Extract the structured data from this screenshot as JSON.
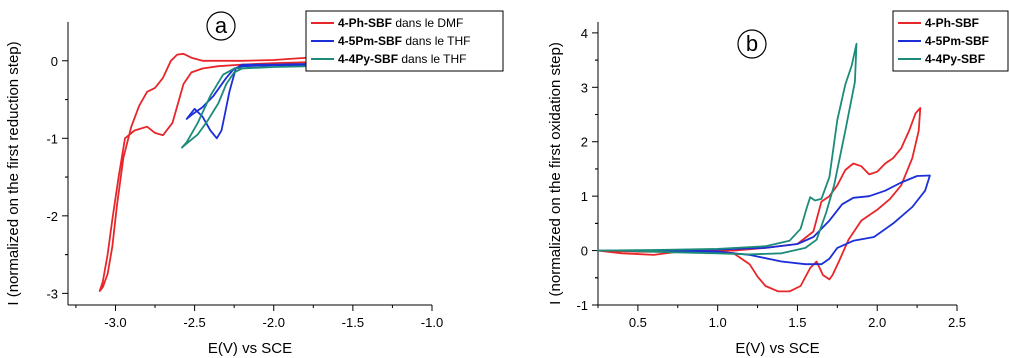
{
  "chart_data": [
    {
      "type": "line",
      "panel_label": "a",
      "xlabel": "E(V) vs SCE",
      "ylabel": "I (normalized on the first reduction step)",
      "xlim": [
        -3.3,
        -1.0
      ],
      "ylim": [
        -3.15,
        0.5
      ],
      "x_ticks": [
        -3.0,
        -2.5,
        -2.0,
        -1.5,
        -1.0
      ],
      "x_tick_labels": [
        "-3.0",
        "-2.5",
        "-2.0",
        "-1.5",
        "-1.0"
      ],
      "y_ticks": [
        0,
        -1,
        -2,
        -3
      ],
      "y_tick_labels": [
        "0",
        "-1",
        "-2",
        "-3"
      ],
      "legend_position": "top-right",
      "series": [
        {
          "name_bold": "4-Ph-SBF",
          "name_rest": " dans le  DMF",
          "color": "#e8262a",
          "points": [
            [
              -1.7,
              0.05
            ],
            [
              -1.85,
              0.03
            ],
            [
              -2.0,
              0.01
            ],
            [
              -2.2,
              0.0
            ],
            [
              -2.35,
              0.0
            ],
            [
              -2.45,
              0.0
            ],
            [
              -2.52,
              0.04
            ],
            [
              -2.57,
              0.09
            ],
            [
              -2.61,
              0.08
            ],
            [
              -2.65,
              0.0
            ],
            [
              -2.7,
              -0.22
            ],
            [
              -2.75,
              -0.35
            ],
            [
              -2.8,
              -0.4
            ],
            [
              -2.85,
              -0.58
            ],
            [
              -2.9,
              -0.85
            ],
            [
              -2.95,
              -1.25
            ],
            [
              -2.99,
              -1.85
            ],
            [
              -3.02,
              -2.4
            ],
            [
              -3.05,
              -2.75
            ],
            [
              -3.08,
              -2.92
            ],
            [
              -3.1,
              -2.97
            ],
            [
              -3.08,
              -2.85
            ],
            [
              -3.05,
              -2.5
            ],
            [
              -3.02,
              -2.05
            ],
            [
              -2.98,
              -1.5
            ],
            [
              -2.94,
              -1.0
            ],
            [
              -2.88,
              -0.9
            ],
            [
              -2.8,
              -0.85
            ],
            [
              -2.75,
              -0.93
            ],
            [
              -2.7,
              -0.96
            ],
            [
              -2.64,
              -0.8
            ],
            [
              -2.57,
              -0.3
            ],
            [
              -2.52,
              -0.15
            ],
            [
              -2.45,
              -0.1
            ],
            [
              -2.35,
              -0.07
            ],
            [
              -2.2,
              -0.05
            ],
            [
              -2.0,
              -0.03
            ],
            [
              -1.8,
              -0.02
            ],
            [
              -1.5,
              -0.01
            ],
            [
              -1.2,
              0.0
            ],
            [
              -1.05,
              0.0
            ]
          ]
        },
        {
          "name_bold": "4-5Pm-SBF",
          "name_rest": " dans le THF",
          "color": "#1b2ed8",
          "points": [
            [
              -1.0,
              -0.02
            ],
            [
              -1.5,
              -0.03
            ],
            [
              -2.0,
              -0.05
            ],
            [
              -2.2,
              -0.05
            ],
            [
              -2.24,
              -0.1
            ],
            [
              -2.28,
              -0.4
            ],
            [
              -2.31,
              -0.7
            ],
            [
              -2.33,
              -0.9
            ],
            [
              -2.36,
              -1.0
            ],
            [
              -2.4,
              -0.9
            ],
            [
              -2.45,
              -0.72
            ],
            [
              -2.5,
              -0.62
            ],
            [
              -2.55,
              -0.75
            ],
            [
              -2.52,
              -0.7
            ],
            [
              -2.45,
              -0.6
            ],
            [
              -2.38,
              -0.45
            ],
            [
              -2.3,
              -0.22
            ],
            [
              -2.25,
              -0.1
            ],
            [
              -2.2,
              -0.07
            ],
            [
              -2.0,
              -0.06
            ],
            [
              -1.5,
              -0.05
            ],
            [
              -1.0,
              -0.04
            ]
          ]
        },
        {
          "name_bold": "4-4Py-SBF",
          "name_rest": " dans le THF",
          "color": "#1c8b7a",
          "points": [
            [
              -1.0,
              -0.05
            ],
            [
              -1.5,
              -0.06
            ],
            [
              -2.0,
              -0.08
            ],
            [
              -2.2,
              -0.1
            ],
            [
              -2.25,
              -0.15
            ],
            [
              -2.3,
              -0.3
            ],
            [
              -2.35,
              -0.55
            ],
            [
              -2.42,
              -0.78
            ],
            [
              -2.48,
              -0.95
            ],
            [
              -2.54,
              -1.05
            ],
            [
              -2.58,
              -1.12
            ],
            [
              -2.55,
              -1.05
            ],
            [
              -2.48,
              -0.8
            ],
            [
              -2.4,
              -0.45
            ],
            [
              -2.32,
              -0.18
            ],
            [
              -2.25,
              -0.1
            ],
            [
              -2.0,
              -0.08
            ],
            [
              -1.5,
              -0.06
            ],
            [
              -1.0,
              -0.05
            ]
          ]
        }
      ]
    },
    {
      "type": "line",
      "panel_label": "b",
      "xlabel": "E(V) vs SCE",
      "ylabel": "I (normalized on the first oxidation step)",
      "xlim": [
        0.25,
        2.5
      ],
      "ylim": [
        -1.0,
        4.2
      ],
      "x_ticks": [
        0.5,
        1.0,
        1.5,
        2.0,
        2.5
      ],
      "x_tick_labels": [
        "0.5",
        "1.0",
        "1.5",
        "2.0",
        "2.5"
      ],
      "y_ticks": [
        -1,
        0,
        1,
        2,
        3,
        4
      ],
      "y_tick_labels": [
        "-1",
        "0",
        "1",
        "2",
        "3",
        "4"
      ],
      "legend_position": "top-right",
      "series": [
        {
          "name_bold": "4-Ph-SBF",
          "name_rest": "",
          "color": "#e8262a",
          "points": [
            [
              0.25,
              0.0
            ],
            [
              0.5,
              -0.02
            ],
            [
              0.7,
              -0.02
            ],
            [
              0.9,
              0.0
            ],
            [
              1.1,
              0.0
            ],
            [
              1.3,
              0.05
            ],
            [
              1.5,
              0.12
            ],
            [
              1.6,
              0.35
            ],
            [
              1.65,
              0.9
            ],
            [
              1.7,
              1.0
            ],
            [
              1.75,
              1.2
            ],
            [
              1.8,
              1.48
            ],
            [
              1.85,
              1.6
            ],
            [
              1.9,
              1.55
            ],
            [
              1.95,
              1.4
            ],
            [
              2.0,
              1.45
            ],
            [
              2.05,
              1.6
            ],
            [
              2.1,
              1.7
            ],
            [
              2.15,
              1.88
            ],
            [
              2.2,
              2.2
            ],
            [
              2.24,
              2.52
            ],
            [
              2.27,
              2.62
            ],
            [
              2.26,
              2.2
            ],
            [
              2.22,
              1.7
            ],
            [
              2.15,
              1.2
            ],
            [
              2.08,
              0.95
            ],
            [
              2.0,
              0.75
            ],
            [
              1.9,
              0.55
            ],
            [
              1.82,
              0.2
            ],
            [
              1.76,
              -0.2
            ],
            [
              1.72,
              -0.45
            ],
            [
              1.7,
              -0.53
            ],
            [
              1.66,
              -0.45
            ],
            [
              1.62,
              -0.2
            ],
            [
              1.58,
              -0.32
            ],
            [
              1.52,
              -0.65
            ],
            [
              1.45,
              -0.75
            ],
            [
              1.38,
              -0.75
            ],
            [
              1.3,
              -0.65
            ],
            [
              1.25,
              -0.48
            ],
            [
              1.2,
              -0.25
            ],
            [
              1.1,
              -0.05
            ],
            [
              1.0,
              -0.02
            ],
            [
              0.8,
              0.0
            ],
            [
              0.6,
              -0.08
            ],
            [
              0.4,
              -0.05
            ],
            [
              0.25,
              0.0
            ]
          ]
        },
        {
          "name_bold": "4-5Pm-SBF",
          "name_rest": "",
          "color": "#1b2ed8",
          "points": [
            [
              0.25,
              0.0
            ],
            [
              0.6,
              0.0
            ],
            [
              1.0,
              0.02
            ],
            [
              1.3,
              0.05
            ],
            [
              1.5,
              0.12
            ],
            [
              1.6,
              0.25
            ],
            [
              1.7,
              0.55
            ],
            [
              1.78,
              0.85
            ],
            [
              1.85,
              0.97
            ],
            [
              1.95,
              1.0
            ],
            [
              2.05,
              1.1
            ],
            [
              2.15,
              1.25
            ],
            [
              2.25,
              1.37
            ],
            [
              2.33,
              1.38
            ],
            [
              2.3,
              1.1
            ],
            [
              2.22,
              0.8
            ],
            [
              2.1,
              0.5
            ],
            [
              1.98,
              0.25
            ],
            [
              1.85,
              0.18
            ],
            [
              1.75,
              0.05
            ],
            [
              1.7,
              -0.15
            ],
            [
              1.65,
              -0.25
            ],
            [
              1.55,
              -0.25
            ],
            [
              1.4,
              -0.2
            ],
            [
              1.2,
              -0.08
            ],
            [
              1.0,
              -0.02
            ],
            [
              0.7,
              -0.02
            ],
            [
              0.4,
              0.0
            ],
            [
              0.25,
              0.0
            ]
          ]
        },
        {
          "name_bold": "4-4Py-SBF",
          "name_rest": "",
          "color": "#1c8b7a",
          "points": [
            [
              0.25,
              0.0
            ],
            [
              0.6,
              0.01
            ],
            [
              1.0,
              0.03
            ],
            [
              1.3,
              0.08
            ],
            [
              1.45,
              0.18
            ],
            [
              1.52,
              0.4
            ],
            [
              1.56,
              0.8
            ],
            [
              1.58,
              0.98
            ],
            [
              1.61,
              0.92
            ],
            [
              1.65,
              0.95
            ],
            [
              1.7,
              1.35
            ],
            [
              1.75,
              2.4
            ],
            [
              1.8,
              3.05
            ],
            [
              1.84,
              3.4
            ],
            [
              1.87,
              3.8
            ],
            [
              1.86,
              3.1
            ],
            [
              1.8,
              2.2
            ],
            [
              1.73,
              1.2
            ],
            [
              1.68,
              0.7
            ],
            [
              1.62,
              0.2
            ],
            [
              1.55,
              0.05
            ],
            [
              1.4,
              -0.05
            ],
            [
              1.2,
              -0.07
            ],
            [
              1.0,
              -0.05
            ],
            [
              0.7,
              -0.03
            ],
            [
              0.4,
              0.0
            ],
            [
              0.25,
              0.0
            ]
          ]
        }
      ]
    }
  ]
}
